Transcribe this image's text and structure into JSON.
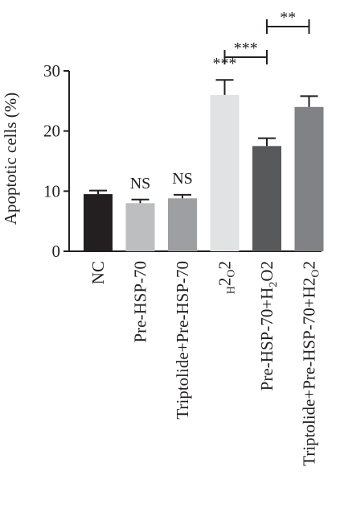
{
  "chart_data": {
    "type": "bar",
    "ylabel": "Apoptotic cells (%)",
    "ylim": [
      0,
      30
    ],
    "yticks": [
      "0",
      "10",
      "20",
      "30"
    ],
    "grid": false,
    "categories": [
      {
        "label": "NC",
        "sub": []
      },
      {
        "label": "Pre-HSP-70",
        "sub": []
      },
      {
        "label": "Triptolide+Pre-HSP-70",
        "sub": []
      },
      {
        "label": "H2O2",
        "sub": [
          [
            0,
            1
          ],
          [
            2,
            3
          ]
        ]
      },
      {
        "label": "Pre-HSP-70+H2O2",
        "sub": [
          [
            12,
            13
          ],
          [
            15,
            16
          ]
        ]
      },
      {
        "label": "Triptolide+Pre-HSP-70+H2O2",
        "sub": [
          [
            24,
            25
          ],
          [
            27,
            28
          ]
        ]
      }
    ],
    "values": [
      9.5,
      8.0,
      8.8,
      26.0,
      17.5,
      24.0
    ],
    "errors": [
      0.6,
      0.6,
      0.6,
      2.5,
      1.3,
      1.8
    ],
    "colors": [
      "#231f20",
      "#bcbec0",
      "#9d9fa2",
      "#e1e2e3",
      "#58595b",
      "#808285"
    ],
    "bar_annotations": [
      {
        "index": 1,
        "text": "NS"
      },
      {
        "index": 2,
        "text": "NS"
      },
      {
        "index": 3,
        "text": "***"
      }
    ],
    "brackets": [
      {
        "from": 3,
        "to": 4,
        "text": "***"
      },
      {
        "from": 4,
        "to": 5,
        "text": "**"
      }
    ]
  }
}
